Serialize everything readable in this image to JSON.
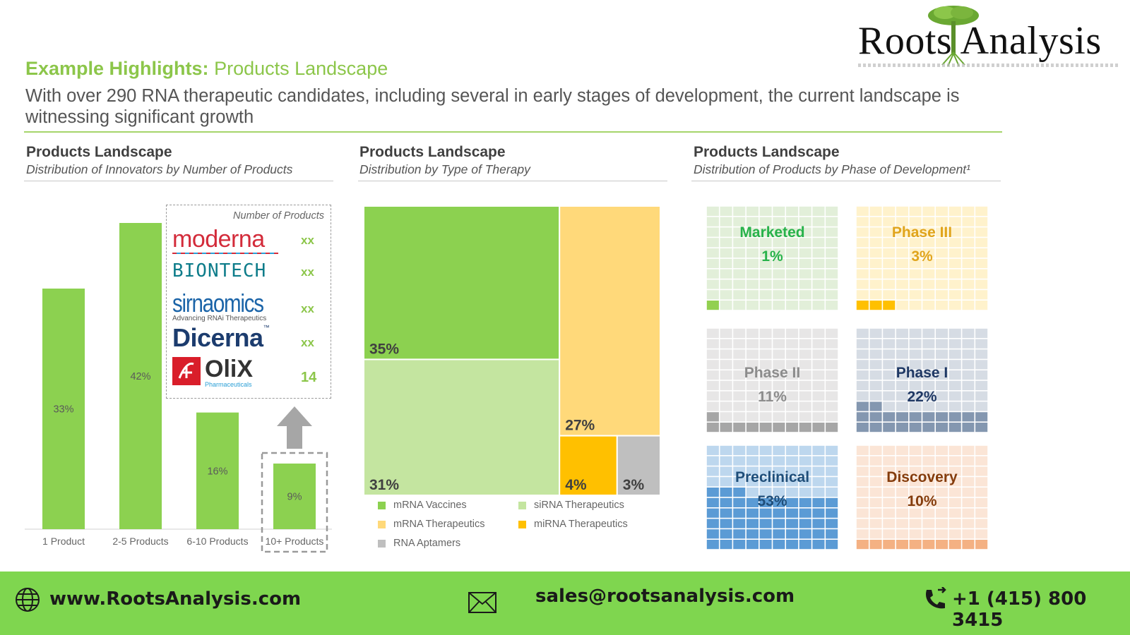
{
  "brand": {
    "logo_text": "Roots Analysis"
  },
  "header": {
    "highlight_bold": "Example Highlights:",
    "highlight_rest": "Products Landscape",
    "headline": "With over 290 RNA therapeutic candidates, including several in early stages of development, the current landscape is witnessing significant growth"
  },
  "panels": [
    {
      "title": "Products Landscape",
      "subtitle": "Distribution of Innovators by Number of Products"
    },
    {
      "title": "Products Landscape",
      "subtitle": "Distribution by Type of Therapy"
    },
    {
      "title": "Products Landscape",
      "subtitle": "Distribution of Products by Phase of Development¹"
    }
  ],
  "innovators": {
    "header": "Number of Products",
    "items": [
      {
        "name": "moderna",
        "count": "xx"
      },
      {
        "name": "BIONTECH",
        "count": "xx"
      },
      {
        "name": "sirnaomics",
        "tagline": "Advancing RNAi Therapeutics",
        "count": "xx"
      },
      {
        "name": "Dicerna",
        "tm": "™",
        "count": "xx"
      },
      {
        "name": "OliX",
        "tagline": "Pharmaceuticals",
        "count": "14"
      }
    ]
  },
  "legend": [
    {
      "label": "mRNA Vaccines",
      "color": "#8cd150"
    },
    {
      "label": "siRNA Therapeutics",
      "color": "#c4e5a0"
    },
    {
      "label": "mRNA Therapeutics",
      "color": "#ffd97a"
    },
    {
      "label": "miRNA Therapeutics",
      "color": "#ffc000"
    },
    {
      "label": "RNA Aptamers",
      "color": "#bfbfbf"
    }
  ],
  "chart_data": [
    {
      "type": "bar",
      "categories": [
        "1 Product",
        "2-5 Products",
        "6-10 Products",
        "10+ Products"
      ],
      "values": [
        33,
        42,
        16,
        9
      ],
      "value_labels": [
        "33%",
        "42%",
        "16%",
        "9%"
      ],
      "highlighted_category": "10+ Products",
      "color": "#8cd150",
      "unit": "%"
    },
    {
      "type": "treemap",
      "items": [
        {
          "name": "mRNA Vaccines",
          "value": 35,
          "label": "35%",
          "color": "#8cd150"
        },
        {
          "name": "siRNA Therapeutics",
          "value": 31,
          "label": "31%",
          "color": "#c4e5a0"
        },
        {
          "name": "mRNA Therapeutics",
          "value": 27,
          "label": "27%",
          "color": "#ffd97a"
        },
        {
          "name": "miRNA Therapeutics",
          "value": 4,
          "label": "4%",
          "color": "#ffc000"
        },
        {
          "name": "RNA Aptamers",
          "value": 3,
          "label": "3%",
          "color": "#bfbfbf"
        }
      ]
    },
    {
      "type": "waffle",
      "items": [
        {
          "name": "Marketed",
          "value": 1,
          "label": "1%",
          "fill": "#92d050",
          "light": "#e2efd9",
          "text": "#27b24a"
        },
        {
          "name": "Phase III",
          "value": 3,
          "label": "3%",
          "fill": "#ffc000",
          "light": "#fff2cc",
          "text": "#e0a41c"
        },
        {
          "name": "Phase II",
          "value": 11,
          "label": "11%",
          "fill": "#a6a6a6",
          "light": "#e7e6e6",
          "text": "#8c8c8c"
        },
        {
          "name": "Phase I",
          "value": 22,
          "label": "22%",
          "fill": "#8497b0",
          "light": "#d6dce4",
          "text": "#1f3864"
        },
        {
          "name": "Preclinical",
          "value": 53,
          "label": "53%",
          "fill": "#5b9bd5",
          "light": "#bdd7ee",
          "text": "#1f4e79"
        },
        {
          "name": "Discovery",
          "value": 10,
          "label": "10%",
          "fill": "#f4b183",
          "light": "#fbe5d6",
          "text": "#843c0c"
        }
      ]
    }
  ],
  "footer": {
    "website": "www.RootsAnalysis.com",
    "email": "sales@rootsanalysis.com",
    "phone": "+1 (415) 800 3415"
  }
}
